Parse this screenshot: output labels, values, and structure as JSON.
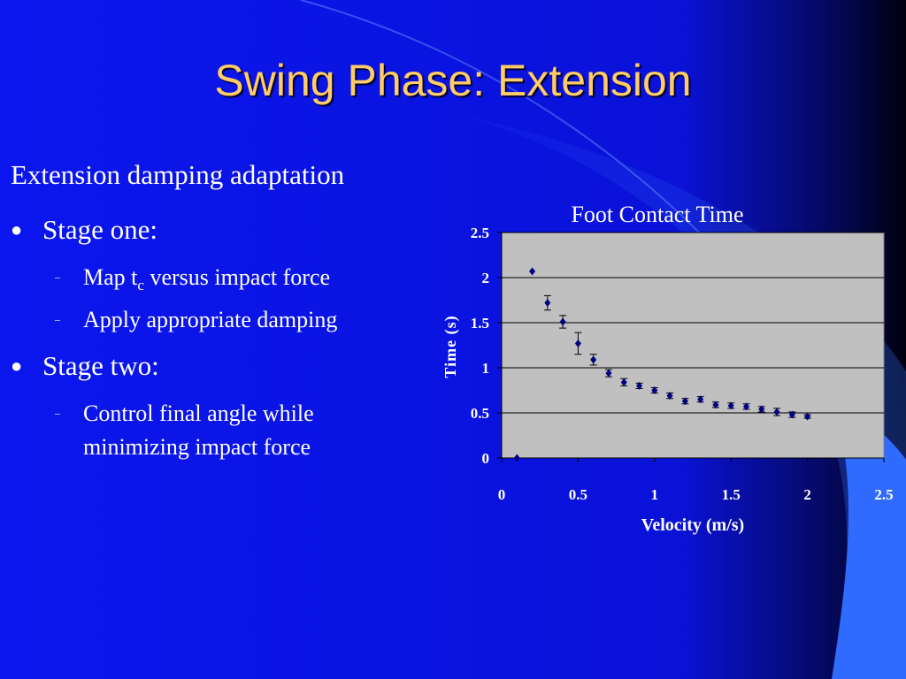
{
  "slide": {
    "title": "Swing Phase: Extension",
    "heading": "Extension damping adaptation",
    "bullets": [
      {
        "label": "Stage one:",
        "subs": [
          {
            "pre": "Map t",
            "sub": "c",
            "post": " versus impact force"
          },
          {
            "pre": "Apply appropriate damping"
          }
        ]
      },
      {
        "label": "Stage two:",
        "subs": [
          {
            "pre": "Control final angle while",
            "line2": "minimizing impact force"
          }
        ]
      }
    ],
    "colors": {
      "background": "#0a14e8",
      "title": "#ffcc66",
      "text": "#ffffff",
      "plot_area": "#c0c0c0",
      "marker": "#000080",
      "accent_curve": "#3b6cff"
    }
  },
  "chart_data": {
    "type": "scatter",
    "title": "Foot Contact Time",
    "xlabel": "Velocity (m/s)",
    "ylabel": "Time (s)",
    "xlim": [
      0,
      2.5
    ],
    "ylim": [
      0,
      2.5
    ],
    "xticks": [
      "0",
      "0.5",
      "1",
      "1.5",
      "2",
      "2.5"
    ],
    "yticks": [
      "0",
      "0.5",
      "1",
      "1.5",
      "2",
      "2.5"
    ],
    "grid": "horizontal",
    "marker": "diamond",
    "points": [
      {
        "x": 0.1,
        "y": 0.0,
        "err": 0
      },
      {
        "x": 0.2,
        "y": 2.07,
        "err": 0
      },
      {
        "x": 0.3,
        "y": 1.72,
        "err": 0.08
      },
      {
        "x": 0.4,
        "y": 1.51,
        "err": 0.07
      },
      {
        "x": 0.5,
        "y": 1.27,
        "err": 0.12
      },
      {
        "x": 0.6,
        "y": 1.09,
        "err": 0.06
      },
      {
        "x": 0.7,
        "y": 0.94,
        "err": 0.04
      },
      {
        "x": 0.8,
        "y": 0.84,
        "err": 0.04
      },
      {
        "x": 0.9,
        "y": 0.8,
        "err": 0.03
      },
      {
        "x": 1.0,
        "y": 0.75,
        "err": 0.03
      },
      {
        "x": 1.1,
        "y": 0.69,
        "err": 0.03
      },
      {
        "x": 1.2,
        "y": 0.63,
        "err": 0.03
      },
      {
        "x": 1.3,
        "y": 0.65,
        "err": 0.03
      },
      {
        "x": 1.4,
        "y": 0.59,
        "err": 0.03
      },
      {
        "x": 1.5,
        "y": 0.58,
        "err": 0.03
      },
      {
        "x": 1.6,
        "y": 0.57,
        "err": 0.03
      },
      {
        "x": 1.7,
        "y": 0.54,
        "err": 0.03
      },
      {
        "x": 1.8,
        "y": 0.51,
        "err": 0.04
      },
      {
        "x": 1.9,
        "y": 0.48,
        "err": 0.03
      },
      {
        "x": 2.0,
        "y": 0.46,
        "err": 0.02
      }
    ]
  }
}
